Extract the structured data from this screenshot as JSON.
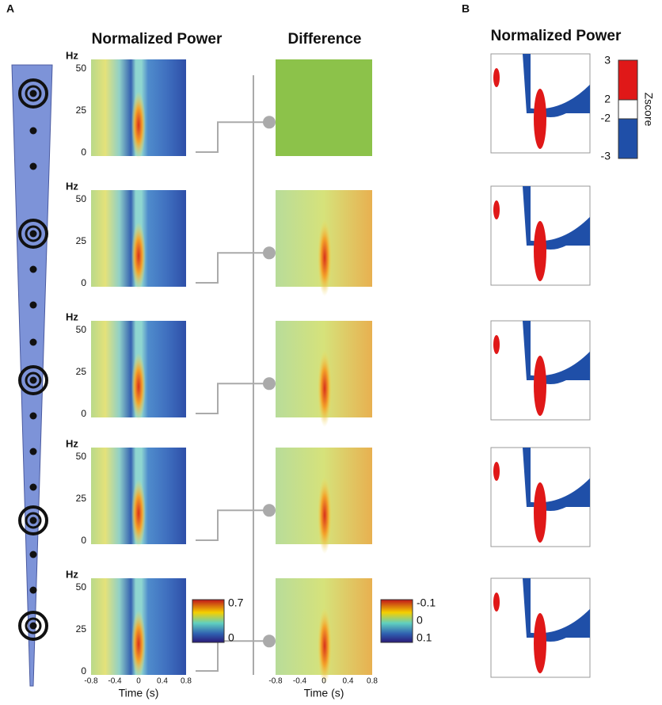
{
  "panel_a": {
    "label": "A",
    "power_title": "Normalized Power",
    "difference_title": "Difference",
    "y_unit": "Hz",
    "yticks": [
      50,
      25,
      0
    ],
    "xticks": [
      -0.8,
      -0.4,
      0,
      0.4,
      0.8
    ],
    "x_label": "Time (s)",
    "power_colorbar": [
      0.7,
      0
    ],
    "difference_colorbar": [
      -0.1,
      0,
      0.1
    ]
  },
  "panel_b": {
    "label": "B",
    "title": "Normalized Power",
    "colorbar_ticks": [
      3,
      2,
      -2,
      -3
    ],
    "colorbar_label": "Zscore"
  }
}
